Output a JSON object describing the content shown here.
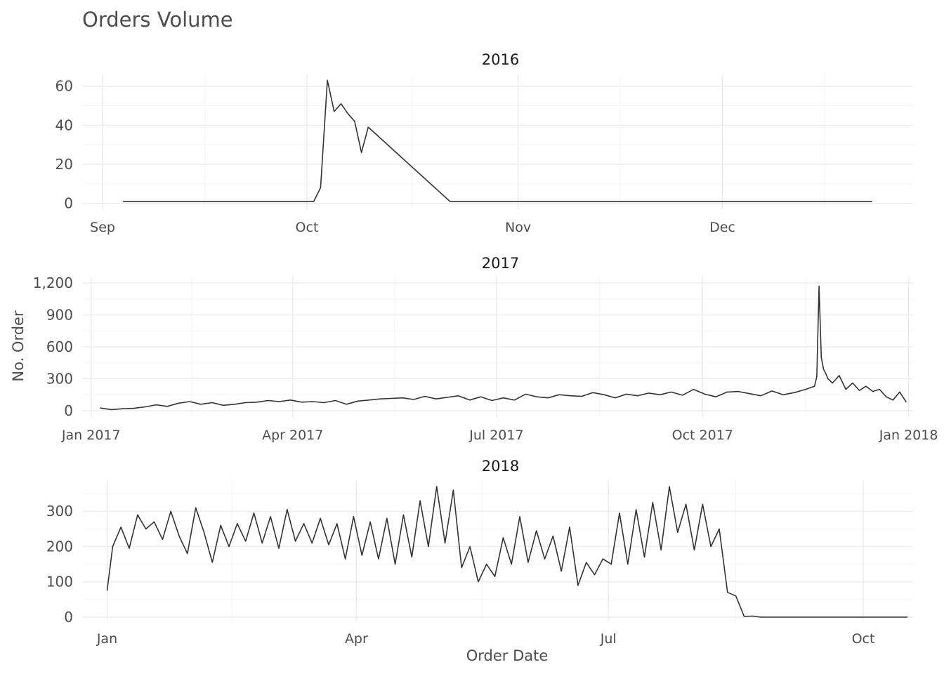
{
  "chart_data": {
    "type": "line",
    "title": "Orders Volume",
    "xlabel": "Order Date",
    "ylabel": "No. Order",
    "grid": true,
    "color": "#333333",
    "panels": [
      {
        "strip": "2016",
        "xlim": [
          "2016-08-29",
          "2016-12-29"
        ],
        "ylim": [
          -3,
          66
        ],
        "yticks": [
          0,
          20,
          40,
          60
        ],
        "ytick_labels": [
          "0",
          "20",
          "40",
          "60"
        ],
        "xticks": [
          "2016-09-01",
          "2016-10-01",
          "2016-11-01",
          "2016-12-01"
        ],
        "xtick_labels": [
          "Sep",
          "Oct",
          "Nov",
          "Dec"
        ],
        "x": [
          "2016-09-04",
          "2016-10-02",
          "2016-10-03",
          "2016-10-04",
          "2016-10-05",
          "2016-10-06",
          "2016-10-07",
          "2016-10-08",
          "2016-10-09",
          "2016-10-10",
          "2016-10-22",
          "2016-12-23"
        ],
        "y": [
          1,
          1,
          8,
          63,
          47,
          51,
          46,
          42,
          26,
          39,
          1,
          1
        ]
      },
      {
        "strip": "2017",
        "xlim": [
          "2016-12-28",
          "2018-01-03"
        ],
        "ylim": [
          -60,
          1260
        ],
        "yticks": [
          0,
          300,
          600,
          900,
          1200
        ],
        "ytick_labels": [
          "0",
          "300",
          "600",
          "900",
          "1,200"
        ],
        "xticks": [
          "2017-01-01",
          "2017-04-01",
          "2017-07-01",
          "2017-10-01",
          "2018-01-01"
        ],
        "xtick_labels": [
          "Jan 2017",
          "Apr 2017",
          "Jul 2017",
          "Oct 2017",
          "Jan 2018"
        ],
        "x": [
          "2017-01-05",
          "2017-01-10",
          "2017-01-15",
          "2017-01-20",
          "2017-01-25",
          "2017-01-30",
          "2017-02-04",
          "2017-02-09",
          "2017-02-14",
          "2017-02-19",
          "2017-02-24",
          "2017-03-01",
          "2017-03-06",
          "2017-03-11",
          "2017-03-16",
          "2017-03-21",
          "2017-03-26",
          "2017-03-31",
          "2017-04-05",
          "2017-04-10",
          "2017-04-15",
          "2017-04-20",
          "2017-04-25",
          "2017-04-30",
          "2017-05-05",
          "2017-05-10",
          "2017-05-15",
          "2017-05-20",
          "2017-05-25",
          "2017-05-30",
          "2017-06-04",
          "2017-06-09",
          "2017-06-14",
          "2017-06-19",
          "2017-06-24",
          "2017-06-29",
          "2017-07-04",
          "2017-07-09",
          "2017-07-14",
          "2017-07-19",
          "2017-07-24",
          "2017-07-29",
          "2017-08-03",
          "2017-08-08",
          "2017-08-13",
          "2017-08-18",
          "2017-08-23",
          "2017-08-28",
          "2017-09-02",
          "2017-09-07",
          "2017-09-12",
          "2017-09-17",
          "2017-09-22",
          "2017-09-27",
          "2017-10-02",
          "2017-10-07",
          "2017-10-12",
          "2017-10-17",
          "2017-10-22",
          "2017-10-27",
          "2017-11-01",
          "2017-11-06",
          "2017-11-11",
          "2017-11-16",
          "2017-11-20",
          "2017-11-21",
          "2017-11-22",
          "2017-11-23",
          "2017-11-24",
          "2017-11-25",
          "2017-11-26",
          "2017-11-28",
          "2017-12-01",
          "2017-12-04",
          "2017-12-07",
          "2017-12-10",
          "2017-12-13",
          "2017-12-16",
          "2017-12-19",
          "2017-12-22",
          "2017-12-25",
          "2017-12-28",
          "2017-12-31"
        ],
        "y": [
          25,
          10,
          18,
          22,
          35,
          55,
          40,
          70,
          85,
          60,
          75,
          50,
          60,
          75,
          80,
          95,
          85,
          100,
          80,
          85,
          75,
          95,
          60,
          90,
          100,
          110,
          115,
          120,
          105,
          135,
          110,
          125,
          140,
          100,
          130,
          95,
          120,
          100,
          155,
          130,
          120,
          150,
          140,
          135,
          170,
          150,
          120,
          155,
          140,
          165,
          150,
          175,
          145,
          200,
          155,
          130,
          175,
          180,
          160,
          140,
          185,
          150,
          170,
          200,
          230,
          320,
          1170,
          500,
          390,
          350,
          300,
          260,
          330,
          200,
          260,
          190,
          230,
          180,
          200,
          130,
          100,
          175,
          80
        ]
      },
      {
        "strip": "2018",
        "xlim": [
          "2017-12-23",
          "2018-10-19"
        ],
        "ylim": [
          -10,
          390
        ],
        "yticks": [
          0,
          100,
          200,
          300
        ],
        "ytick_labels": [
          "0",
          "100",
          "200",
          "300"
        ],
        "xticks": [
          "2018-01-01",
          "2018-04-01",
          "2018-07-01",
          "2018-10-01"
        ],
        "xtick_labels": [
          "Jan",
          "Apr",
          "Jul",
          "Oct"
        ],
        "x": [
          "2018-01-01",
          "2018-01-03",
          "2018-01-06",
          "2018-01-09",
          "2018-01-12",
          "2018-01-15",
          "2018-01-18",
          "2018-01-21",
          "2018-01-24",
          "2018-01-27",
          "2018-01-30",
          "2018-02-02",
          "2018-02-05",
          "2018-02-08",
          "2018-02-11",
          "2018-02-14",
          "2018-02-17",
          "2018-02-20",
          "2018-02-23",
          "2018-02-26",
          "2018-03-01",
          "2018-03-04",
          "2018-03-07",
          "2018-03-10",
          "2018-03-13",
          "2018-03-16",
          "2018-03-19",
          "2018-03-22",
          "2018-03-25",
          "2018-03-28",
          "2018-03-31",
          "2018-04-03",
          "2018-04-06",
          "2018-04-09",
          "2018-04-12",
          "2018-04-15",
          "2018-04-18",
          "2018-04-21",
          "2018-04-24",
          "2018-04-27",
          "2018-04-30",
          "2018-05-03",
          "2018-05-06",
          "2018-05-09",
          "2018-05-12",
          "2018-05-15",
          "2018-05-18",
          "2018-05-21",
          "2018-05-24",
          "2018-05-27",
          "2018-05-30",
          "2018-06-02",
          "2018-06-05",
          "2018-06-08",
          "2018-06-11",
          "2018-06-14",
          "2018-06-17",
          "2018-06-20",
          "2018-06-23",
          "2018-06-26",
          "2018-06-29",
          "2018-07-02",
          "2018-07-05",
          "2018-07-08",
          "2018-07-11",
          "2018-07-14",
          "2018-07-17",
          "2018-07-20",
          "2018-07-23",
          "2018-07-26",
          "2018-07-29",
          "2018-08-01",
          "2018-08-04",
          "2018-08-07",
          "2018-08-10",
          "2018-08-13",
          "2018-08-16",
          "2018-08-19",
          "2018-08-22",
          "2018-08-25",
          "2018-08-28",
          "2018-08-31",
          "2018-09-03",
          "2018-09-06",
          "2018-09-15",
          "2018-10-17"
        ],
        "y": [
          75,
          200,
          255,
          195,
          290,
          250,
          270,
          220,
          300,
          230,
          180,
          310,
          240,
          155,
          260,
          200,
          265,
          215,
          295,
          210,
          285,
          195,
          305,
          215,
          265,
          210,
          280,
          205,
          265,
          165,
          285,
          175,
          270,
          165,
          280,
          150,
          290,
          170,
          330,
          200,
          370,
          210,
          360,
          140,
          200,
          100,
          150,
          115,
          225,
          150,
          285,
          155,
          245,
          165,
          230,
          130,
          255,
          90,
          155,
          120,
          165,
          150,
          295,
          150,
          305,
          170,
          325,
          190,
          370,
          240,
          320,
          190,
          320,
          200,
          250,
          70,
          60,
          2,
          3,
          0,
          0,
          0,
          0,
          0,
          0,
          0
        ]
      }
    ]
  }
}
